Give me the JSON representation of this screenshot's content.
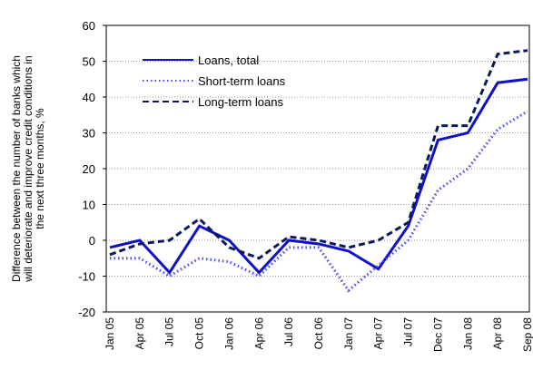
{
  "chart_data": {
    "type": "line",
    "ylabel": [
      "Difference between the number of banks which",
      "will deteriorate and improve credit conditions in",
      "the next three months, %"
    ],
    "categories": [
      "Jan 05",
      "Apr 05",
      "Jul 05",
      "Oct 05",
      "Jan 06",
      "Apr 06",
      "Jul 06",
      "Oct 06",
      "Jan 07",
      "Apr 07",
      "Jul 07",
      "Dec 07",
      "Jan 08",
      "Apr 08",
      "Sep 08"
    ],
    "series": [
      {
        "name": "Loans, total",
        "color": "#1010c8",
        "style": "solid",
        "values": [
          -2,
          0,
          -9,
          4,
          0,
          -9,
          0,
          -1,
          -3,
          -8,
          4,
          28,
          30,
          44,
          45
        ]
      },
      {
        "name": "Short-term loans",
        "color": "#4a4af0",
        "style": "dotted",
        "values": [
          -5,
          -5,
          -10,
          -5,
          -6,
          -10,
          -2,
          -2,
          -14,
          -7,
          0,
          14,
          20,
          31,
          36
        ]
      },
      {
        "name": "Long-term loans",
        "color": "#0a1a5a",
        "style": "dashed",
        "values": [
          -4,
          -1,
          0,
          6,
          -2,
          -5,
          1,
          0,
          -2,
          0,
          5,
          32,
          32,
          52,
          53
        ]
      }
    ],
    "ylim": [
      -20,
      60
    ],
    "yticks": [
      -20,
      -10,
      0,
      10,
      20,
      30,
      40,
      50,
      60
    ],
    "grid": true
  }
}
